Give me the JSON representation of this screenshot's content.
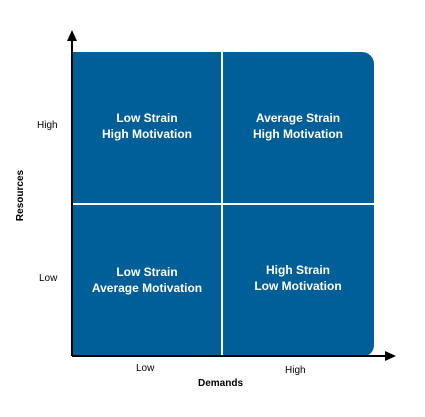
{
  "quadrants": {
    "top_left": {
      "line1": "Low Strain",
      "line2": "High Motivation"
    },
    "top_right": {
      "line1": "Average Strain",
      "line2": "High Motivation"
    },
    "bottom_left": {
      "line1": "Low Strain",
      "line2": "Average Motivation"
    },
    "bottom_right": {
      "line1": "High Strain",
      "line2": "Low Motivation"
    }
  },
  "axes": {
    "x": {
      "title": "Demands",
      "low": "Low",
      "high": "High"
    },
    "y": {
      "title": "Resources",
      "low": "Low",
      "high": "High"
    }
  },
  "colors": {
    "quadrant_fill": "#005f98",
    "quadrant_text": "#ffffff",
    "axis": "#000000"
  }
}
